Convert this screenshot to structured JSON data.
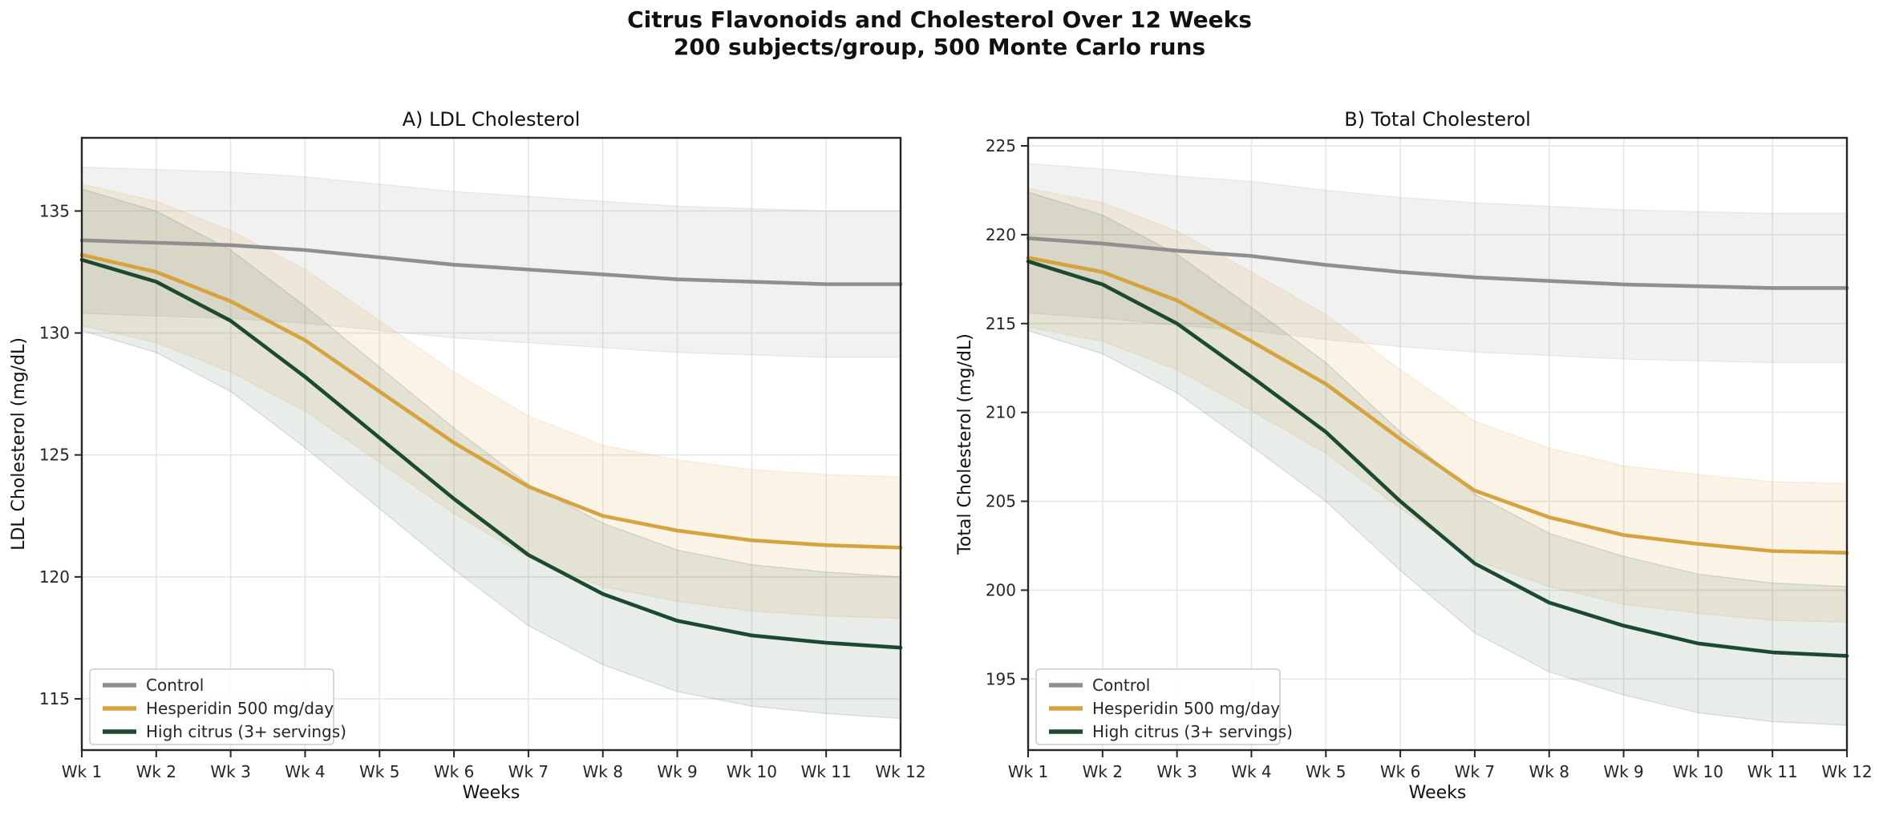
{
  "figure": {
    "title_line1": "Citrus Flavonoids and Cholesterol Over 12 Weeks",
    "title_line2": "200 subjects/group, 500 Monte Carlo runs"
  },
  "chart_data": [
    {
      "type": "line",
      "title": "A) LDL Cholesterol",
      "xlabel": "Weeks",
      "ylabel": "LDL Cholesterol (mg/dL)",
      "x_categories": [
        "Wk 1",
        "Wk 2",
        "Wk 3",
        "Wk 4",
        "Wk 5",
        "Wk 6",
        "Wk 7",
        "Wk 8",
        "Wk 9",
        "Wk 10",
        "Wk 11",
        "Wk 12"
      ],
      "ylim": [
        112.9,
        138.0
      ],
      "yticks": [
        115,
        120,
        125,
        130,
        135
      ],
      "grid": true,
      "legend_position": "lower left",
      "legend_entries": [
        "Control",
        "Hesperidin 500 mg/day",
        "High citrus (3+ servings)"
      ],
      "series": [
        {
          "name": "Control",
          "color": "#8f8f8f",
          "band_halfwidth": 3.0,
          "band_opacity": 0.12,
          "values": [
            133.8,
            133.7,
            133.6,
            133.4,
            133.1,
            132.8,
            132.6,
            132.4,
            132.2,
            132.1,
            132.0,
            132.0
          ]
        },
        {
          "name": "Hesperidin 500 mg/day",
          "color": "#d5a33f",
          "band_halfwidth": 2.9,
          "band_opacity": 0.13,
          "values": [
            133.2,
            132.5,
            131.3,
            129.7,
            127.6,
            125.5,
            123.7,
            122.5,
            121.9,
            121.5,
            121.3,
            121.2
          ]
        },
        {
          "name": "High citrus (3+ servings)",
          "color": "#1c4a31",
          "band_halfwidth": 2.9,
          "band_opacity": 0.1,
          "values": [
            133.0,
            132.1,
            130.5,
            128.2,
            125.7,
            123.2,
            120.9,
            119.3,
            118.2,
            117.6,
            117.3,
            117.1
          ]
        }
      ]
    },
    {
      "type": "line",
      "title": "B) Total Cholesterol",
      "xlabel": "Weeks",
      "ylabel": "Total Cholesterol (mg/dL)",
      "x_categories": [
        "Wk 1",
        "Wk 2",
        "Wk 3",
        "Wk 4",
        "Wk 5",
        "Wk 6",
        "Wk 7",
        "Wk 8",
        "Wk 9",
        "Wk 10",
        "Wk 11",
        "Wk 12"
      ],
      "ylim": [
        191.0,
        225.45
      ],
      "yticks": [
        195,
        200,
        205,
        210,
        215,
        220,
        225
      ],
      "grid": true,
      "legend_position": "lower left",
      "legend_entries": [
        "Control",
        "Hesperidin 500 mg/day",
        "High citrus (3+ servings)"
      ],
      "series": [
        {
          "name": "Control",
          "color": "#8f8f8f",
          "band_halfwidth": 4.2,
          "band_opacity": 0.12,
          "values": [
            219.8,
            219.5,
            219.1,
            218.8,
            218.3,
            217.9,
            217.6,
            217.4,
            217.2,
            217.1,
            217.0,
            217.0
          ]
        },
        {
          "name": "Hesperidin 500 mg/day",
          "color": "#d5a33f",
          "band_halfwidth": 3.9,
          "band_opacity": 0.13,
          "values": [
            218.7,
            217.9,
            216.3,
            214.0,
            211.6,
            208.5,
            205.6,
            204.1,
            203.1,
            202.6,
            202.2,
            202.1
          ]
        },
        {
          "name": "High citrus (3+ servings)",
          "color": "#1c4a31",
          "band_halfwidth": 3.9,
          "band_opacity": 0.1,
          "values": [
            218.5,
            217.2,
            215.0,
            212.0,
            208.9,
            205.0,
            201.5,
            199.3,
            198.0,
            197.0,
            196.5,
            196.3
          ]
        }
      ]
    }
  ],
  "style": {
    "spine_color": "#262626",
    "grid_color": "#e6e6e6",
    "tick_label_color": "#262626",
    "title_color": "#111111",
    "legend_border_color": "#cccccc",
    "legend_bg_color": "#ffffff"
  }
}
